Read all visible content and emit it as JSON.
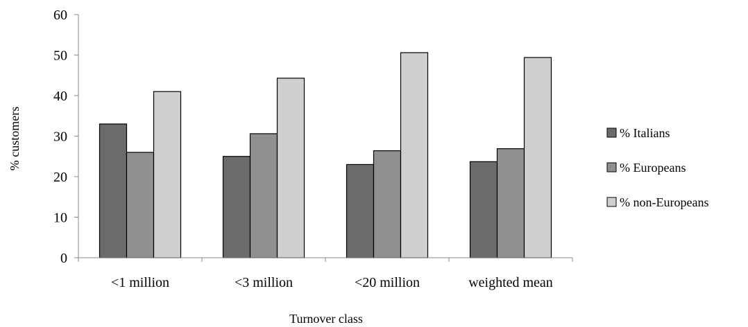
{
  "chart_data": {
    "type": "bar",
    "title": "",
    "xlabel": "Turnover class",
    "ylabel": "% customers",
    "ylim": [
      0,
      60
    ],
    "yticks": [
      0,
      10,
      20,
      30,
      40,
      50,
      60
    ],
    "grid": false,
    "legend_position": "right",
    "categories": [
      "<1 million",
      "<3 million",
      "<20 million",
      "weighted mean"
    ],
    "series": [
      {
        "name": "% Italians",
        "color": "#6b6b6b",
        "values": [
          33,
          25,
          23,
          23.7
        ]
      },
      {
        "name": "% Europeans",
        "color": "#909090",
        "values": [
          26,
          30.6,
          26.4,
          26.9
        ]
      },
      {
        "name": "% non-Europeans",
        "color": "#cfcfcf",
        "values": [
          41,
          44.3,
          50.6,
          49.4
        ]
      }
    ]
  }
}
